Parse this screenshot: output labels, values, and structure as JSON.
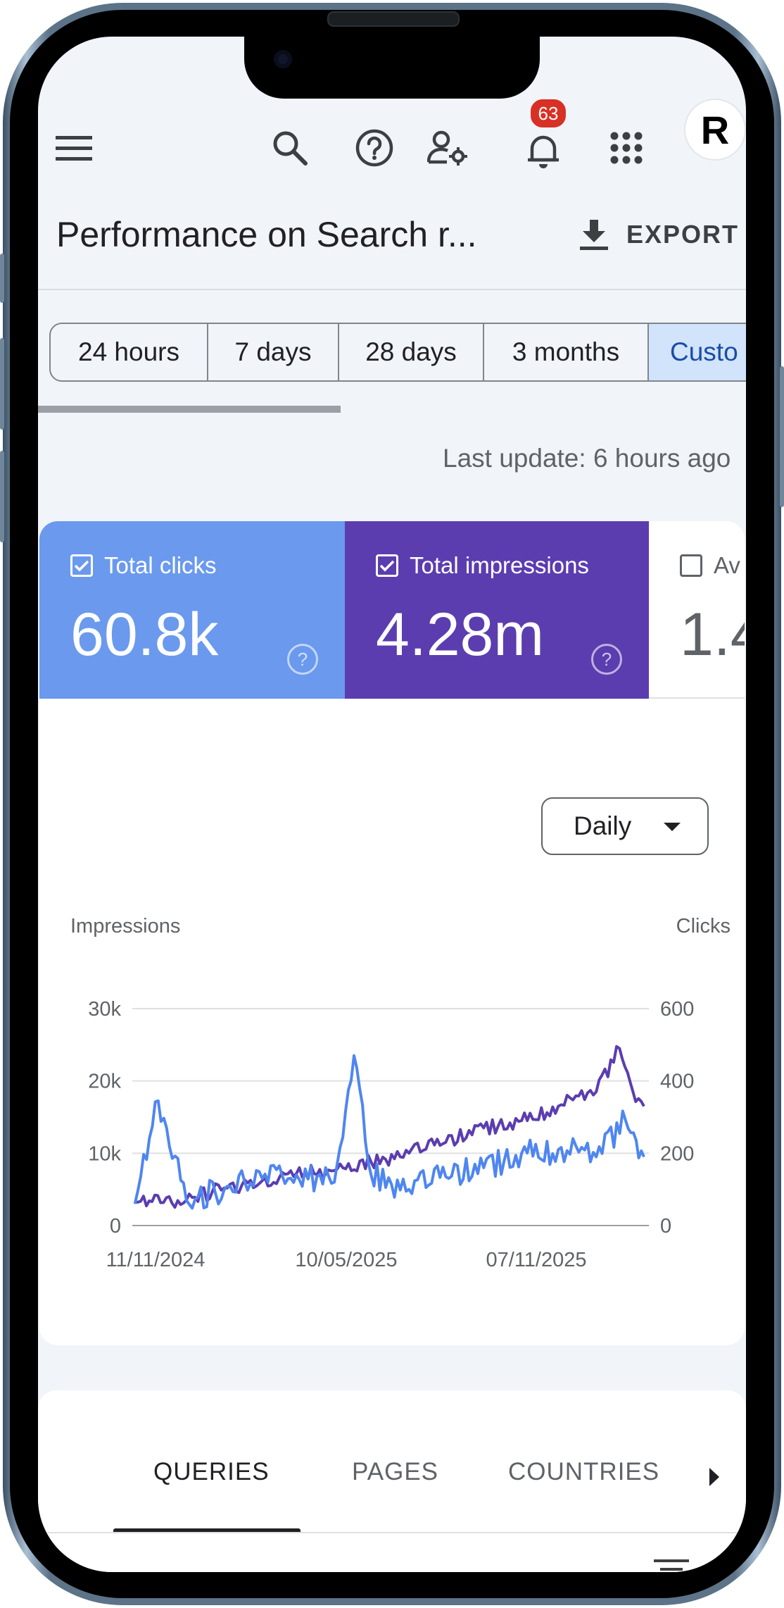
{
  "header": {
    "title": "Performance on Search r...",
    "export_label": "EXPORT",
    "notification_count": "63",
    "avatar_letter": "R",
    "icons": [
      "menu-icon",
      "search-icon",
      "help-icon",
      "manage-users-icon",
      "notifications-icon",
      "apps-icon"
    ]
  },
  "date_range": {
    "chips": [
      "24 hours",
      "7 days",
      "28 days",
      "3 months",
      "Custo"
    ],
    "active": "Custo"
  },
  "last_update": "Last update: 6 hours ago",
  "metrics": [
    {
      "label": "Total clicks",
      "value": "60.8k",
      "checked": true,
      "color": "#6a99ee"
    },
    {
      "label": "Total impressions",
      "value": "4.28m",
      "checked": true,
      "color": "#5b3db0"
    },
    {
      "label": "Av",
      "value": "1.4",
      "checked": false,
      "color": "#ffffff"
    }
  ],
  "granularity": {
    "selected": "Daily"
  },
  "chart_data": {
    "type": "line",
    "left_axis": {
      "label": "Impressions",
      "ticks": [
        "0",
        "10k",
        "20k",
        "30k"
      ],
      "range": [
        0,
        30000
      ]
    },
    "right_axis": {
      "label": "Clicks",
      "ticks": [
        "0",
        "200",
        "400",
        "600"
      ],
      "range": [
        0,
        600
      ]
    },
    "x_ticks": [
      "11/11/2024",
      "10/05/2025",
      "07/11/2025"
    ],
    "x_range": [
      "2024-10-19",
      "2025-12-14"
    ],
    "grid": true,
    "series": [
      {
        "name": "Total impressions",
        "axis": "left",
        "color": "#5b3db0",
        "points": [
          [
            "2024-10-20",
            3200
          ],
          [
            "2024-12-01",
            3500
          ],
          [
            "2025-01-01",
            5200
          ],
          [
            "2025-02-01",
            6200
          ],
          [
            "2025-03-01",
            7200
          ],
          [
            "2025-04-01",
            7600
          ],
          [
            "2025-05-01",
            8800
          ],
          [
            "2025-06-01",
            10000
          ],
          [
            "2025-07-01",
            11500
          ],
          [
            "2025-08-01",
            13500
          ],
          [
            "2025-09-01",
            14500
          ],
          [
            "2025-10-01",
            16500
          ],
          [
            "2025-11-01",
            18500
          ],
          [
            "2025-11-20",
            24500
          ],
          [
            "2025-12-01",
            18500
          ],
          [
            "2025-12-10",
            16500
          ]
        ]
      },
      {
        "name": "Total clicks",
        "axis": "right",
        "color": "#4f86f0",
        "points": [
          [
            "2024-10-20",
            60
          ],
          [
            "2024-11-08",
            345
          ],
          [
            "2024-12-01",
            70
          ],
          [
            "2025-01-01",
            100
          ],
          [
            "2025-02-01",
            130
          ],
          [
            "2025-03-01",
            140
          ],
          [
            "2025-04-01",
            120
          ],
          [
            "2025-04-17",
            470
          ],
          [
            "2025-05-01",
            140
          ],
          [
            "2025-06-01",
            100
          ],
          [
            "2025-07-01",
            135
          ],
          [
            "2025-08-01",
            160
          ],
          [
            "2025-09-01",
            200
          ],
          [
            "2025-10-01",
            210
          ],
          [
            "2025-11-01",
            190
          ],
          [
            "2025-11-25",
            290
          ],
          [
            "2025-12-10",
            190
          ]
        ]
      }
    ]
  },
  "tabs": {
    "items": [
      "QUERIES",
      "PAGES",
      "COUNTRIES"
    ],
    "active": "QUERIES"
  }
}
